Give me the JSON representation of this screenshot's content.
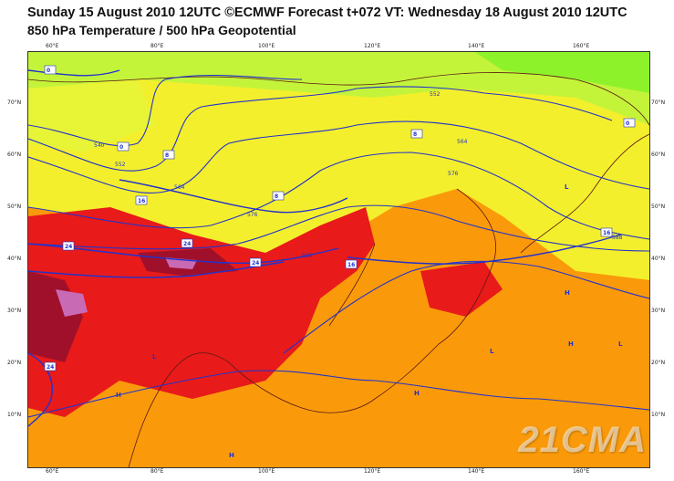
{
  "header": {
    "title_line1": "Sunday 15 August 2010 12UTC ©ECMWF Forecast t+072 VT: Wednesday 18 August 2010 12UTC",
    "title_line2": "850 hPa Temperature / 500 hPa Geopotential"
  },
  "map": {
    "lon_labels": [
      "60°E",
      "80°E",
      "100°E",
      "120°E",
      "140°E",
      "160°E"
    ],
    "lat_labels": [
      "70°N",
      "60°N",
      "50°N",
      "40°N",
      "30°N",
      "20°N",
      "10°N"
    ],
    "geopotential_labels": [
      "540",
      "552",
      "564",
      "576",
      "588",
      "552",
      "564",
      "576",
      "588"
    ],
    "temperature_labels": [
      "0",
      "0",
      "8",
      "16",
      "24",
      "24",
      "24",
      "16",
      "24",
      "8",
      "16",
      "0",
      "8"
    ],
    "pressure_centers": [
      "H",
      "L",
      "H",
      "L",
      "H",
      "H",
      "L",
      "H",
      "L"
    ],
    "watermark": "21CMA",
    "colors": {
      "band_lt0": "#7cf226",
      "band_0_8": "#c4f43a",
      "band_8_16": "#f4ef2c",
      "band_16_24": "#fa9a0a",
      "band_24_32": "#e81a1a",
      "band_32_plus": "#a0102a",
      "band_hot": "#c86ab4",
      "contour_color": "#2233cc",
      "coast_color": "#5a1a14"
    }
  }
}
